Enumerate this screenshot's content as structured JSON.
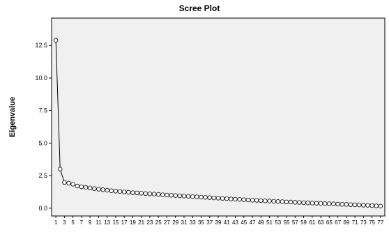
{
  "chart_data": {
    "type": "line",
    "title": "Scree Plot",
    "xlabel": "",
    "ylabel": "Eigenvalue",
    "ylim": [
      -0.6,
      14.6
    ],
    "xlim": [
      0,
      78
    ],
    "y_ticks": [
      "0.0",
      "2.5",
      "5.0",
      "7.5",
      "10.0",
      "12.5"
    ],
    "y_tick_values": [
      0,
      2.5,
      5,
      7.5,
      10,
      12.5
    ],
    "x_tick_values": [
      1,
      3,
      5,
      7,
      9,
      11,
      13,
      15,
      17,
      19,
      21,
      23,
      25,
      27,
      29,
      31,
      33,
      35,
      37,
      39,
      41,
      43,
      45,
      47,
      49,
      51,
      53,
      55,
      57,
      59,
      61,
      63,
      65,
      67,
      69,
      71,
      73,
      75,
      77
    ],
    "x_ticks": [
      "1",
      "3",
      "5",
      "7",
      "9",
      "11",
      "13",
      "15",
      "17",
      "19",
      "21",
      "23",
      "25",
      "27",
      "29",
      "31",
      "33",
      "35",
      "37",
      "39",
      "41",
      "43",
      "45",
      "47",
      "49",
      "51",
      "53",
      "55",
      "57",
      "59",
      "61",
      "63",
      "65",
      "67",
      "69",
      "71",
      "73",
      "75",
      "77"
    ],
    "grid": false,
    "marker": "circle",
    "plot_background": "#f0f0f0",
    "line_color": "#000000",
    "marker_face": "#ffffff",
    "x": [
      1,
      2,
      3,
      4,
      5,
      6,
      7,
      8,
      9,
      10,
      11,
      12,
      13,
      14,
      15,
      16,
      17,
      18,
      19,
      20,
      21,
      22,
      23,
      24,
      25,
      26,
      27,
      28,
      29,
      30,
      31,
      32,
      33,
      34,
      35,
      36,
      37,
      38,
      39,
      40,
      41,
      42,
      43,
      44,
      45,
      46,
      47,
      48,
      49,
      50,
      51,
      52,
      53,
      54,
      55,
      56,
      57,
      58,
      59,
      60,
      61,
      62,
      63,
      64,
      65,
      66,
      67,
      68,
      69,
      70,
      71,
      72,
      73,
      74,
      75,
      76,
      77
    ],
    "series": [
      {
        "values": [
          12.9,
          3.0,
          1.97,
          1.92,
          1.84,
          1.7,
          1.64,
          1.6,
          1.55,
          1.5,
          1.46,
          1.42,
          1.38,
          1.34,
          1.31,
          1.28,
          1.25,
          1.22,
          1.19,
          1.17,
          1.15,
          1.12,
          1.1,
          1.08,
          1.06,
          1.03,
          1.01,
          0.99,
          0.97,
          0.95,
          0.93,
          0.91,
          0.89,
          0.87,
          0.85,
          0.83,
          0.81,
          0.79,
          0.77,
          0.75,
          0.73,
          0.71,
          0.69,
          0.67,
          0.65,
          0.63,
          0.61,
          0.6,
          0.58,
          0.56,
          0.55,
          0.53,
          0.51,
          0.5,
          0.48,
          0.47,
          0.45,
          0.44,
          0.42,
          0.41,
          0.39,
          0.38,
          0.37,
          0.35,
          0.34,
          0.33,
          0.31,
          0.3,
          0.29,
          0.27,
          0.26,
          0.25,
          0.23,
          0.22,
          0.2,
          0.18,
          0.16
        ]
      }
    ]
  }
}
